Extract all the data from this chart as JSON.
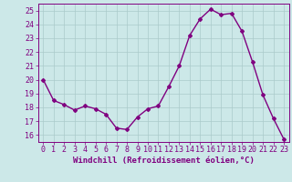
{
  "x": [
    0,
    1,
    2,
    3,
    4,
    5,
    6,
    7,
    8,
    9,
    10,
    11,
    12,
    13,
    14,
    15,
    16,
    17,
    18,
    19,
    20,
    21,
    22,
    23
  ],
  "y": [
    20.0,
    18.5,
    18.2,
    17.8,
    18.1,
    17.9,
    17.5,
    16.5,
    16.4,
    17.3,
    17.9,
    18.1,
    19.5,
    21.0,
    23.2,
    24.4,
    25.1,
    24.7,
    24.8,
    23.5,
    21.3,
    18.9,
    17.2,
    15.7
  ],
  "line_color": "#800080",
  "marker": "D",
  "marker_size": 2,
  "bg_color": "#cce8e8",
  "grid_color": "#aacaca",
  "xlabel": "Windchill (Refroidissement éolien,°C)",
  "xlabel_color": "#800080",
  "tick_color": "#800080",
  "ylim": [
    15.5,
    25.5
  ],
  "xlim": [
    -0.5,
    23.5
  ],
  "yticks": [
    16,
    17,
    18,
    19,
    20,
    21,
    22,
    23,
    24,
    25
  ],
  "xticks": [
    0,
    1,
    2,
    3,
    4,
    5,
    6,
    7,
    8,
    9,
    10,
    11,
    12,
    13,
    14,
    15,
    16,
    17,
    18,
    19,
    20,
    21,
    22,
    23
  ],
  "line_width": 1.0,
  "tick_fontsize": 6.0,
  "xlabel_fontsize": 6.5
}
